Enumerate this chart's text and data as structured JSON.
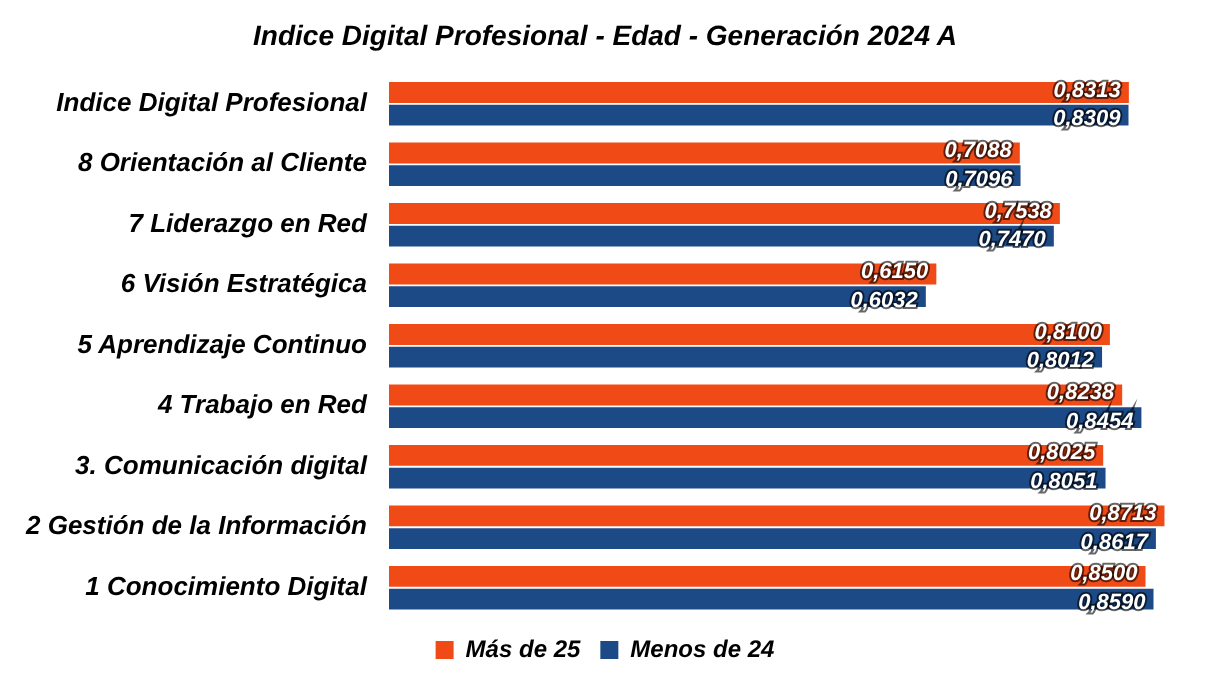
{
  "chart_data": {
    "type": "bar",
    "orientation": "horizontal",
    "title": "Indice Digital Profesional - Edad - Generación 2024 A",
    "categories": [
      "Indice Digital Profesional",
      "8 Orientación al Cliente",
      "7 Liderazgo en Red",
      "6 Visión Estratégica",
      "5 Aprendizaje Continuo",
      "4 Trabajo en Red",
      "3. Comunicación digital",
      "2 Gestión de la Información",
      "1 Conocimiento Digital"
    ],
    "series": [
      {
        "name": "Más de 25",
        "color": "#f04a17",
        "values": [
          0.8313,
          0.7088,
          0.7538,
          0.615,
          0.81,
          0.8238,
          0.8025,
          0.8713,
          0.85
        ],
        "value_labels": [
          "0,8313",
          "0,7088",
          "0,7538",
          "0,6150",
          "0,8100",
          "0,8238",
          "0,8025",
          "0,8713",
          "0,8500"
        ]
      },
      {
        "name": "Menos de 24",
        "color": "#1c4a87",
        "values": [
          0.8309,
          0.7096,
          0.747,
          0.6032,
          0.8012,
          0.8454,
          0.8051,
          0.8617,
          0.859
        ],
        "value_labels": [
          "0,8309",
          "0,7096",
          "0,7470",
          "0,6032",
          "0,8012",
          "0,8454",
          "0,8051",
          "0,8617",
          "0,8590"
        ]
      }
    ],
    "legend": "bottom"
  }
}
